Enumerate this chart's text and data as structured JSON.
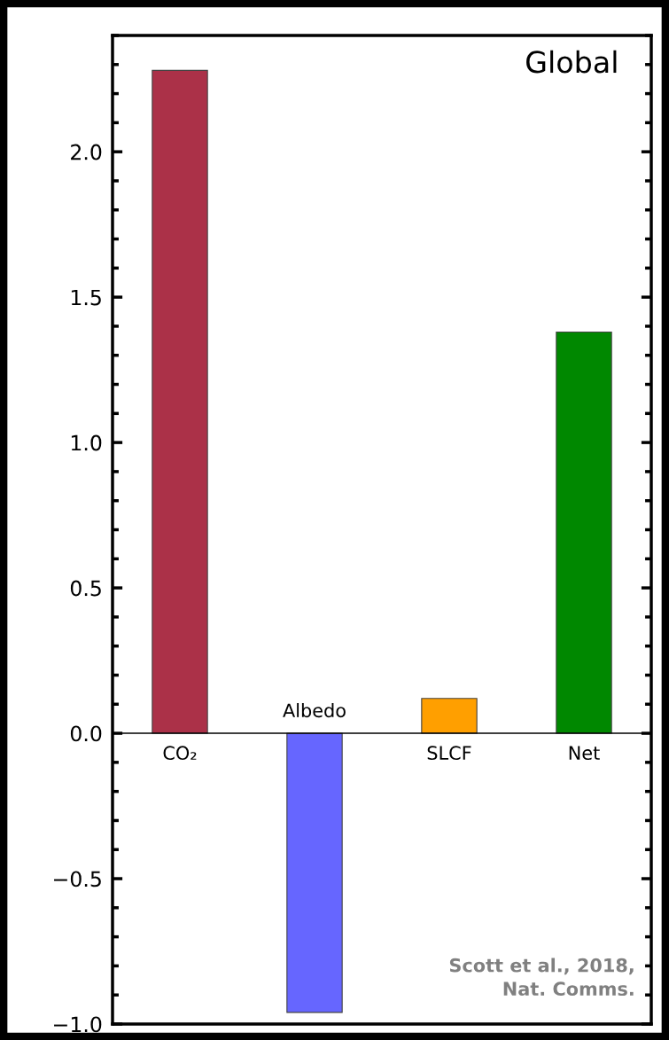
{
  "chart_data": {
    "type": "bar",
    "title": "Global",
    "categories": [
      "CO₂",
      "Albedo",
      "SLCF",
      "Net"
    ],
    "values": [
      2.28,
      -0.96,
      0.12,
      1.38
    ],
    "colors": [
      "#ab3148",
      "#6666ff",
      "#ff9f00",
      "#008800"
    ],
    "ylim": [
      -1.0,
      2.4
    ],
    "yticks": [
      {
        "value": -1.0,
        "label": "−1.0"
      },
      {
        "value": -0.9,
        "label": null
      },
      {
        "value": -0.8,
        "label": null
      },
      {
        "value": -0.7,
        "label": null
      },
      {
        "value": -0.6,
        "label": null
      },
      {
        "value": -0.5,
        "label": "−0.5"
      },
      {
        "value": -0.4,
        "label": null
      },
      {
        "value": -0.3,
        "label": null
      },
      {
        "value": -0.2,
        "label": null
      },
      {
        "value": -0.1,
        "label": null
      },
      {
        "value": 0.0,
        "label": "0.0"
      },
      {
        "value": 0.1,
        "label": null
      },
      {
        "value": 0.2,
        "label": null
      },
      {
        "value": 0.3,
        "label": null
      },
      {
        "value": 0.4,
        "label": null
      },
      {
        "value": 0.5,
        "label": "0.5"
      },
      {
        "value": 0.6,
        "label": null
      },
      {
        "value": 0.7,
        "label": null
      },
      {
        "value": 0.8,
        "label": null
      },
      {
        "value": 0.9,
        "label": null
      },
      {
        "value": 1.0,
        "label": "1.0"
      },
      {
        "value": 1.1,
        "label": null
      },
      {
        "value": 1.2,
        "label": null
      },
      {
        "value": 1.3,
        "label": null
      },
      {
        "value": 1.4,
        "label": null
      },
      {
        "value": 1.5,
        "label": "1.5"
      },
      {
        "value": 1.6,
        "label": null
      },
      {
        "value": 1.7,
        "label": null
      },
      {
        "value": 1.8,
        "label": null
      },
      {
        "value": 1.9,
        "label": null
      },
      {
        "value": 2.0,
        "label": "2.0"
      },
      {
        "value": 2.1,
        "label": null
      },
      {
        "value": 2.2,
        "label": null
      },
      {
        "value": 2.3,
        "label": null
      },
      {
        "value": 2.4,
        "label": null
      }
    ],
    "annotations": [
      "Scott et al., 2018, Nat. Comms."
    ],
    "grid": false,
    "legend": false
  }
}
